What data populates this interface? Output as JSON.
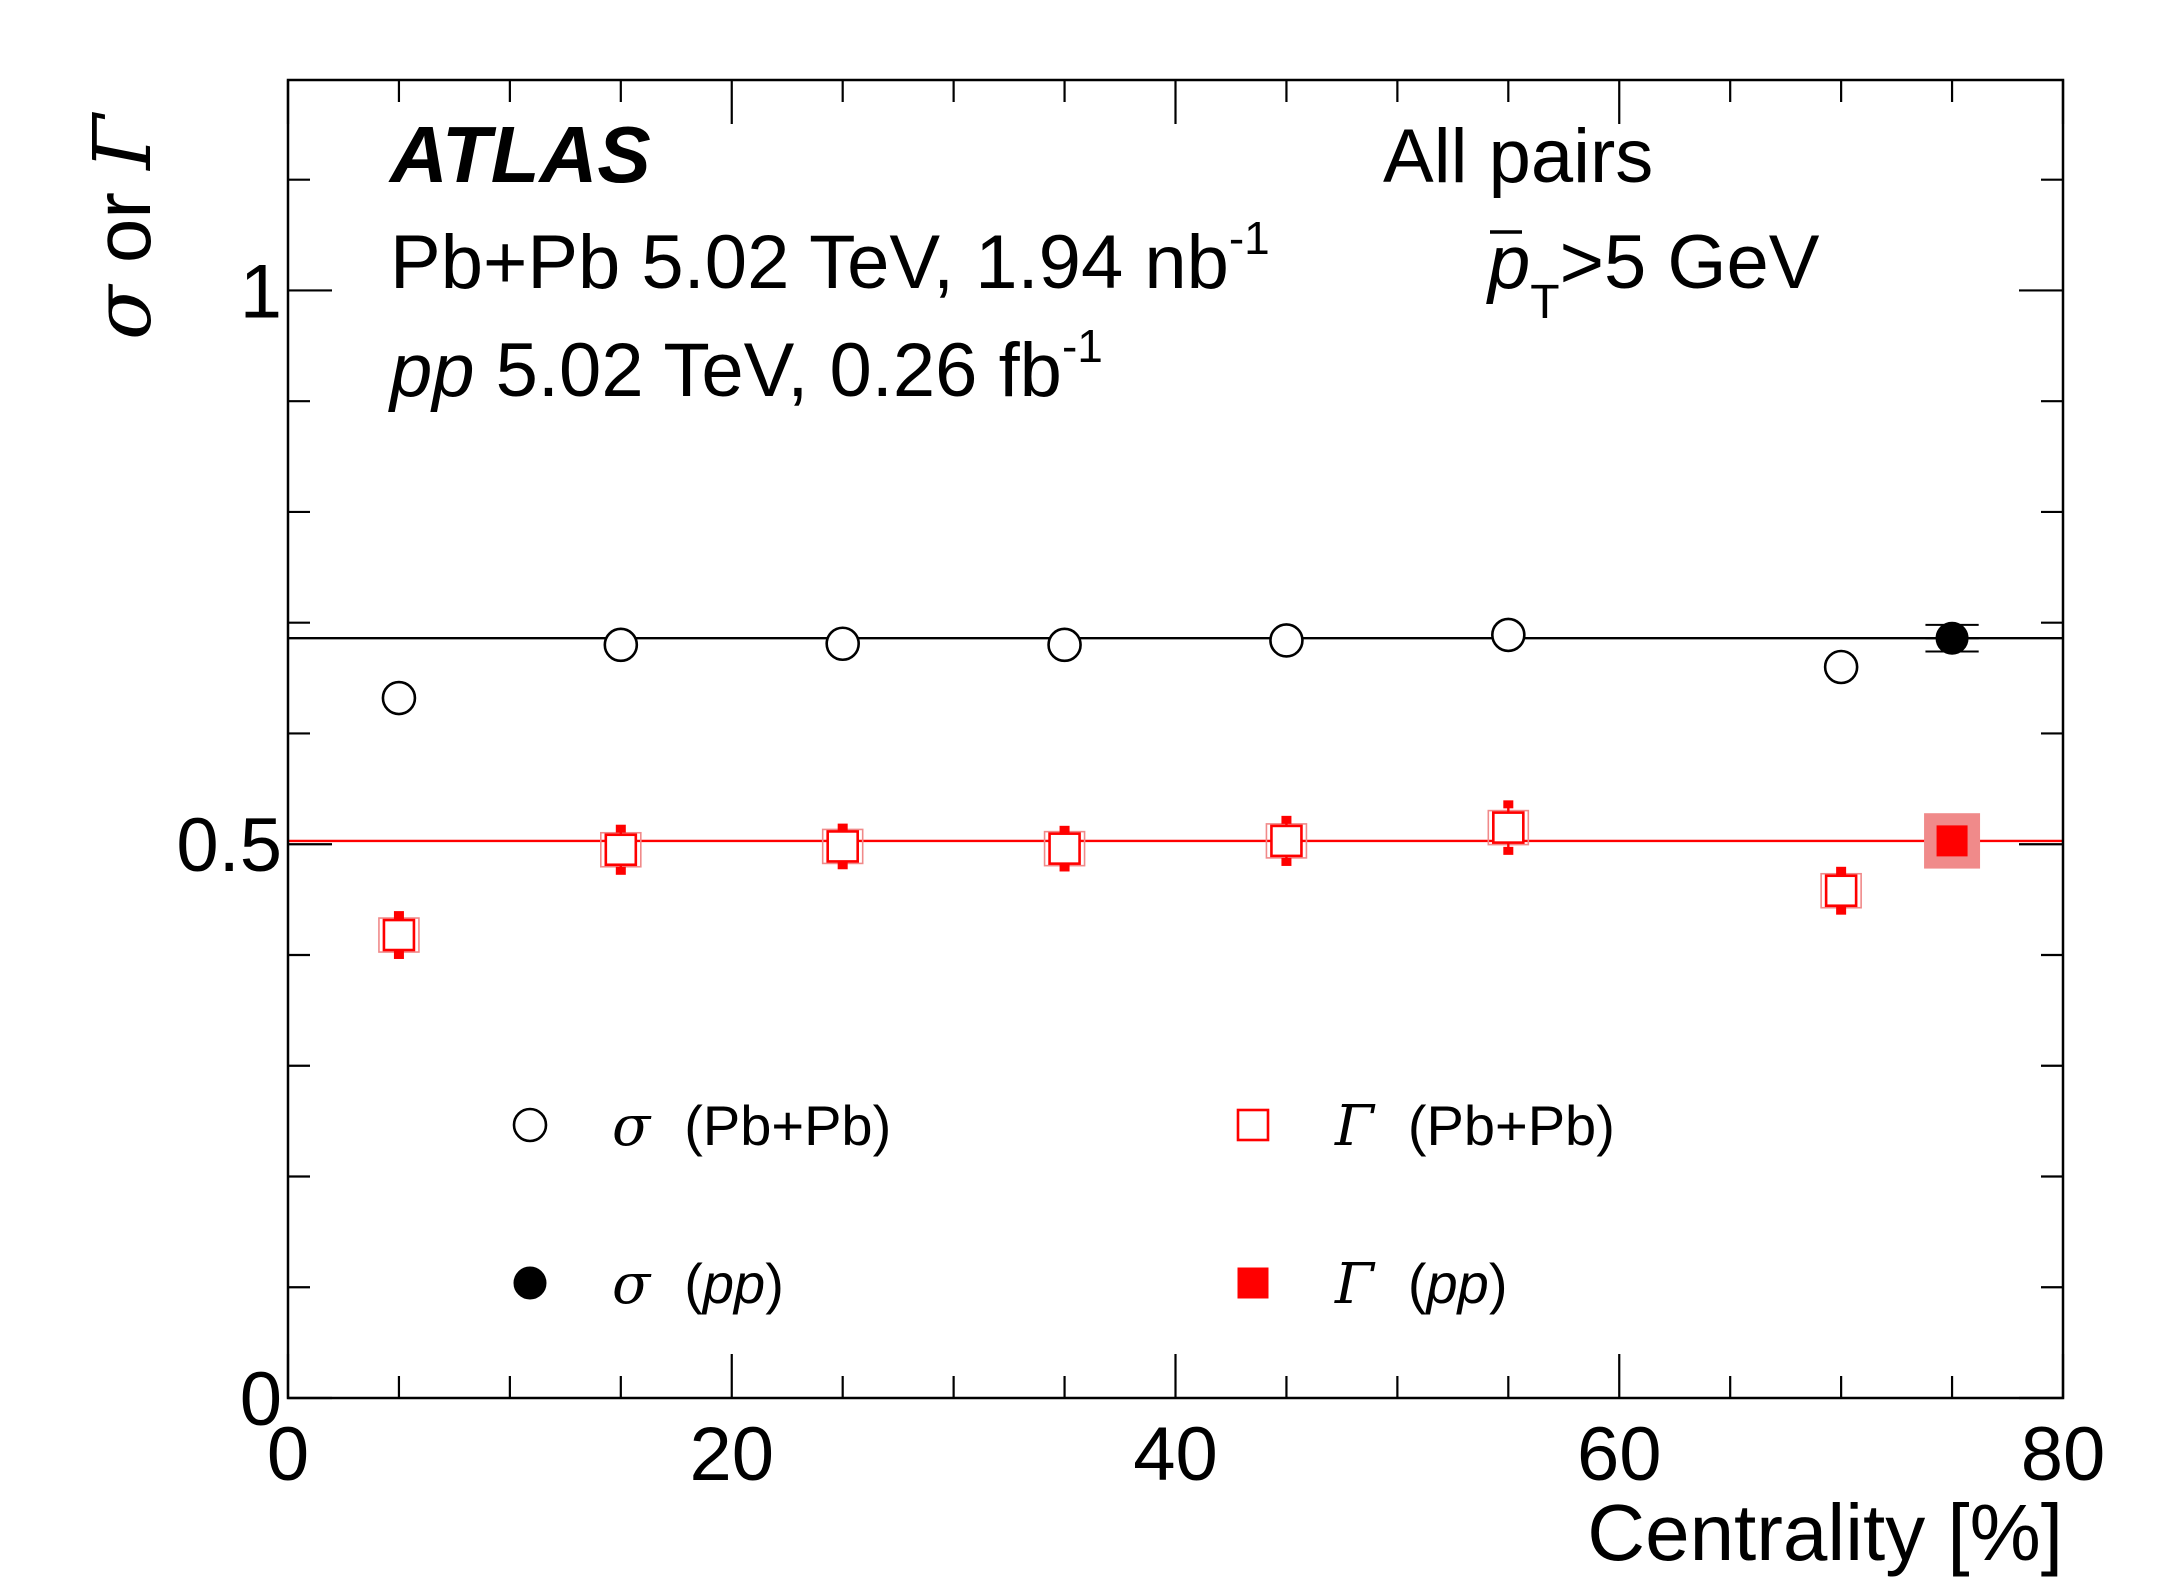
{
  "chart_data": {
    "type": "scatter",
    "title": "",
    "xlabel": "Centrality [%]",
    "ylabel_parts": [
      "σ",
      " or ",
      "Γ"
    ],
    "xlim": [
      0,
      80
    ],
    "ylim": [
      0,
      1.19
    ],
    "x_major_ticks": [
      0,
      20,
      40,
      60,
      80
    ],
    "x_minor_step": 5,
    "y_major_ticks": [
      0,
      0.5,
      1
    ],
    "y_minor_step": 0.1,
    "x_tick_labels": [
      "0",
      "20",
      "40",
      "60",
      "80"
    ],
    "y_tick_labels": [
      "0",
      "0.5",
      "1"
    ],
    "grid": false,
    "legend_placement": "bottom",
    "annotations": {
      "experiment": "ATLAS",
      "selection": "All pairs",
      "pbpb_prefix": "Pb+Pb 5.02 TeV, 1.94 nb",
      "pbpb_sup": "-1",
      "pp_italic": "pp",
      "pp_rest": " 5.02 TeV, 0.26 fb",
      "pp_sup": "-1",
      "pt_symbol": "p",
      "pt_sub": "T",
      "pt_cut": ">5 GeV"
    },
    "reference_lines": [
      {
        "series": "sigma_pp",
        "y": 0.686,
        "color": "#000000"
      },
      {
        "series": "gamma_pp",
        "y": 0.503,
        "color": "#ff0000"
      }
    ],
    "series": [
      {
        "key": "sigma_pbpb",
        "symbol": "σ",
        "label": "(Pb+Pb)",
        "label_italic": false,
        "marker": "open-circle",
        "color": "#000000",
        "points": [
          {
            "x": 5,
            "y": 0.632
          },
          {
            "x": 15,
            "y": 0.68
          },
          {
            "x": 25,
            "y": 0.681
          },
          {
            "x": 35,
            "y": 0.68
          },
          {
            "x": 45,
            "y": 0.684
          },
          {
            "x": 55,
            "y": 0.689
          },
          {
            "x": 70,
            "y": 0.66
          }
        ]
      },
      {
        "key": "sigma_pp",
        "symbol": "σ",
        "label": "pp",
        "label_italic": true,
        "marker": "filled-circle",
        "color": "#000000",
        "points": [
          {
            "x": 75,
            "y": 0.686,
            "xerr": 1.2,
            "yerr": 0.012
          }
        ]
      },
      {
        "key": "gamma_pbpb",
        "symbol": "Γ",
        "label": "(Pb+Pb)",
        "label_italic": false,
        "marker": "open-square",
        "color": "#ff0000",
        "points": [
          {
            "x": 5,
            "y": 0.418,
            "yerr": 0.018
          },
          {
            "x": 15,
            "y": 0.495,
            "yerr": 0.019
          },
          {
            "x": 25,
            "y": 0.498,
            "yerr": 0.017
          },
          {
            "x": 35,
            "y": 0.496,
            "yerr": 0.017
          },
          {
            "x": 45,
            "y": 0.503,
            "yerr": 0.019
          },
          {
            "x": 55,
            "y": 0.515,
            "yerr": 0.021
          },
          {
            "x": 70,
            "y": 0.458,
            "yerr": 0.018
          }
        ]
      },
      {
        "key": "gamma_pp",
        "symbol": "Γ",
        "label": "pp",
        "label_italic": true,
        "marker": "filled-square",
        "color": "#ff0000",
        "syst_color": "#f08a8a",
        "points": [
          {
            "x": 75,
            "y": 0.503,
            "syst": 0.025
          }
        ]
      }
    ]
  }
}
